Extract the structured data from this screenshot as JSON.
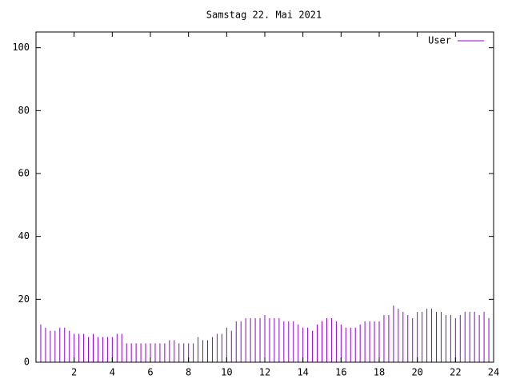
{
  "chart_data": {
    "type": "impulse",
    "title": "Samstag 22. Mai 2021",
    "series": [
      {
        "name": "User",
        "color": "#9400d3",
        "x": [
          0,
          0.25,
          0.5,
          0.75,
          1,
          1.25,
          1.5,
          1.75,
          2,
          2.25,
          2.5,
          2.75,
          3,
          3.25,
          3.5,
          3.75,
          4,
          4.25,
          4.5,
          4.75,
          5,
          5.25,
          5.5,
          5.75,
          6,
          6.25,
          6.5,
          6.75,
          7,
          7.25,
          7.5,
          7.75,
          8,
          8.25,
          8.5,
          8.75,
          9,
          9.25,
          9.5,
          9.75,
          10,
          10.25,
          10.5,
          10.75,
          11,
          11.25,
          11.5,
          11.75,
          12,
          12.25,
          12.5,
          12.75,
          13,
          13.25,
          13.5,
          13.75,
          14,
          14.25,
          14.5,
          14.75,
          15,
          15.25,
          15.5,
          15.75,
          16,
          16.25,
          16.5,
          16.75,
          17,
          17.25,
          17.5,
          17.75,
          18,
          18.25,
          18.5,
          18.75,
          19,
          19.25,
          19.5,
          19.75,
          20,
          20.25,
          20.5,
          20.75,
          21,
          21.25,
          21.5,
          21.75,
          22,
          22.25,
          22.5,
          22.75,
          23,
          23.25,
          23.5,
          23.75,
          24
        ],
        "values": [
          11,
          12,
          11,
          10,
          10,
          11,
          11,
          10,
          9,
          9,
          9,
          8,
          9,
          8,
          8,
          8,
          8,
          9,
          9,
          6,
          6,
          6,
          6,
          6,
          6,
          6,
          6,
          6,
          7,
          7,
          6,
          6,
          6,
          6,
          8,
          7,
          7,
          8,
          9,
          9,
          11,
          10,
          13,
          13,
          14,
          14,
          14,
          14,
          15,
          14,
          14,
          14,
          13,
          13,
          13,
          12,
          11,
          11,
          10,
          12,
          13,
          14,
          14,
          13,
          12,
          11,
          11,
          11,
          12,
          13,
          13,
          13,
          13,
          15,
          15,
          18,
          17,
          16,
          15,
          14,
          16,
          16,
          17,
          17,
          16,
          16,
          15,
          15,
          14,
          15,
          16,
          16,
          16,
          15,
          16,
          14,
          13
        ]
      }
    ],
    "xlim": [
      0,
      24
    ],
    "xticks": [
      2,
      4,
      6,
      8,
      10,
      12,
      14,
      16,
      18,
      20,
      22,
      24
    ],
    "ylim": [
      0,
      105
    ],
    "yticks": [
      0,
      20,
      40,
      60,
      80,
      100
    ],
    "legend": "top-right"
  }
}
